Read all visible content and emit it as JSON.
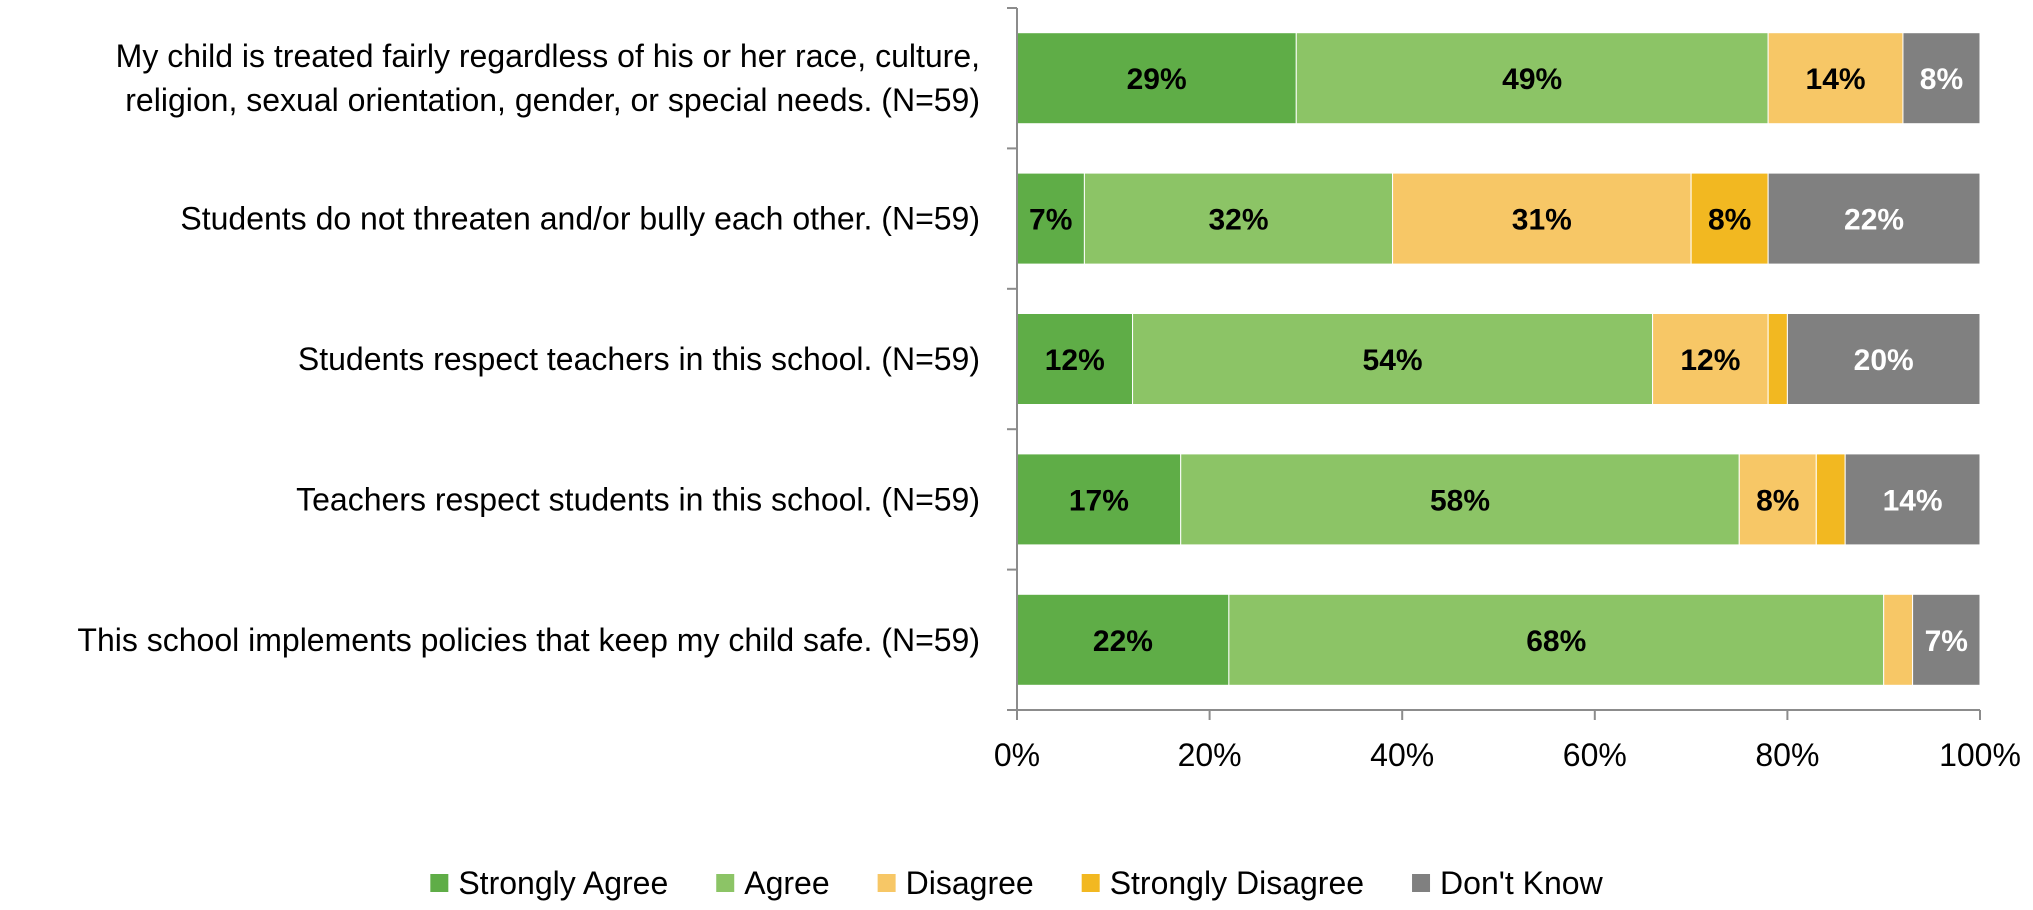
{
  "chart_data": {
    "type": "bar",
    "orientation": "horizontal",
    "stacked": "percent",
    "categories": [
      [
        "My child is treated fairly regardless of his or her race, culture,",
        "religion, sexual orientation, gender, or special needs. (N=59)"
      ],
      [
        "Students do not threaten and/or bully each other. (N=59)"
      ],
      [
        "Students respect teachers in this school. (N=59)"
      ],
      [
        "Teachers respect students in this school. (N=59)"
      ],
      [
        "This school implements policies that keep my child safe. (N=59)"
      ]
    ],
    "series": [
      {
        "name": "Strongly Agree",
        "color": "#5fad47",
        "label_color": "#000000",
        "values": [
          29,
          7,
          12,
          17,
          22
        ],
        "labels": [
          "29%",
          "7%",
          "12%",
          "17%",
          "22%"
        ]
      },
      {
        "name": "Agree",
        "color": "#8cc466",
        "label_color": "#000000",
        "values": [
          49,
          32,
          54,
          58,
          68
        ],
        "labels": [
          "49%",
          "32%",
          "54%",
          "58%",
          "68%"
        ]
      },
      {
        "name": "Disagree",
        "color": "#f7c766",
        "label_color": "#000000",
        "values": [
          14,
          31,
          12,
          8,
          3
        ],
        "labels": [
          "14%",
          "31%",
          "12%",
          "8%",
          ""
        ]
      },
      {
        "name": "Strongly Disagree",
        "color": "#f2b821",
        "label_color": "#000000",
        "values": [
          0,
          8,
          2,
          3,
          0
        ],
        "labels": [
          "",
          "8%",
          "",
          "",
          ""
        ]
      },
      {
        "name": "Don't Know",
        "color": "#808080",
        "label_color": "#ffffff",
        "values": [
          8,
          22,
          20,
          14,
          7
        ],
        "labels": [
          "8%",
          "22%",
          "20%",
          "14%",
          "7%"
        ]
      }
    ],
    "xlim": [
      0,
      100
    ],
    "xticks": [
      "0%",
      "20%",
      "40%",
      "60%",
      "80%",
      "100%"
    ],
    "grid": false,
    "legend": "bottom"
  }
}
